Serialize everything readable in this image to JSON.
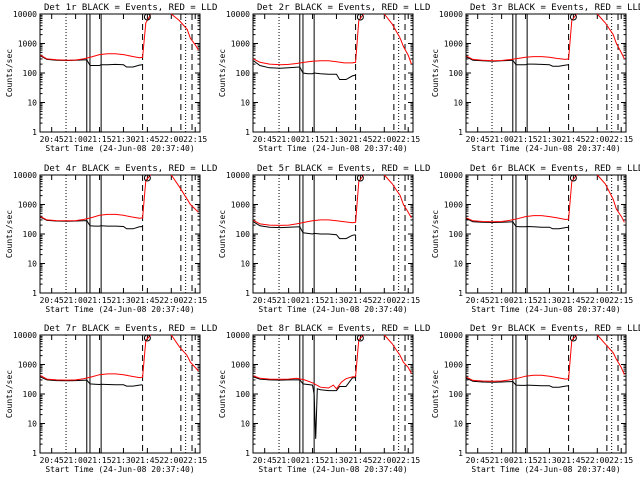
{
  "chart_data": {
    "type": "line",
    "y_scale": "log",
    "ylim": [
      1,
      10000
    ],
    "ylabel": "Counts/sec",
    "xlabel": "Start Time (24-Jun-08 20:37:40)",
    "x_tick_labels": [
      "20:45",
      "21:00",
      "21:15",
      "21:30",
      "21:45",
      "22:00",
      "22:15"
    ],
    "y_tick_labels": [
      "1",
      "10",
      "100",
      "1000",
      "10000"
    ],
    "x_tick_times": [
      "20:45",
      "21:00",
      "21:15",
      "21:30",
      "21:45",
      "22:00",
      "22:15"
    ],
    "xlim": [
      "20:37:40",
      "22:18"
    ],
    "series_colors": {
      "Events": "#000000",
      "LLD": "#ff0000"
    },
    "markers": {
      "dotted": [
        "20:54",
        "22:09"
      ],
      "solid": [
        "21:07",
        "21:09",
        "21:16"
      ],
      "dashed": [
        "21:42",
        "22:06",
        "22:13"
      ]
    },
    "panels": [
      {
        "title": "Det 1r BLACK = Events, RED = LLD",
        "events": {
          "x": [
            "20:38",
            "20:42",
            "20:48",
            "20:55",
            "21:00",
            "21:07",
            "21:09",
            "21:12",
            "21:15",
            "21:16",
            "21:20",
            "21:25",
            "21:30",
            "21:32",
            "21:36",
            "21:40",
            "21:42"
          ],
          "y": [
            380,
            290,
            270,
            265,
            270,
            280,
            180,
            180,
            180,
            190,
            190,
            195,
            190,
            160,
            160,
            185,
            190
          ]
        },
        "lld": {
          "x": [
            "20:38",
            "20:42",
            "20:48",
            "20:55",
            "21:00",
            "21:05",
            "21:10",
            "21:15",
            "21:20",
            "21:25",
            "21:30",
            "21:35",
            "21:40",
            "21:42",
            "21:44",
            "21:47",
            "21:52",
            "21:55",
            "22:00",
            "22:05",
            "22:10",
            "22:12",
            "22:15",
            "22:17"
          ],
          "y": [
            400,
            300,
            280,
            270,
            275,
            300,
            350,
            420,
            450,
            450,
            420,
            370,
            330,
            340,
            5000,
            9500,
            null,
            null,
            10000,
            6000,
            3000,
            1500,
            900,
            600
          ]
        }
      },
      {
        "title": "Det 2r BLACK = Events, RED = LLD",
        "events": {
          "x": [
            "20:38",
            "20:42",
            "20:48",
            "20:55",
            "21:00",
            "21:07",
            "21:09",
            "21:12",
            "21:15",
            "21:16",
            "21:20",
            "21:25",
            "21:30",
            "21:32",
            "21:36",
            "21:40",
            "21:42"
          ],
          "y": [
            260,
            180,
            150,
            145,
            150,
            160,
            100,
            95,
            95,
            100,
            95,
            90,
            90,
            60,
            60,
            80,
            85
          ]
        },
        "lld": {
          "x": [
            "20:38",
            "20:42",
            "20:48",
            "20:55",
            "21:00",
            "21:05",
            "21:10",
            "21:15",
            "21:20",
            "21:25",
            "21:30",
            "21:35",
            "21:40",
            "21:42",
            "21:44",
            "21:47",
            "21:52",
            "21:55",
            "22:00",
            "22:05",
            "22:10",
            "22:12",
            "22:15",
            "22:17"
          ],
          "y": [
            300,
            230,
            200,
            190,
            195,
            210,
            230,
            250,
            260,
            260,
            240,
            220,
            220,
            230,
            6000,
            10000,
            null,
            null,
            10000,
            4500,
            1500,
            800,
            400,
            200
          ]
        }
      },
      {
        "title": "Det 3r BLACK = Events, RED = LLD",
        "events": {
          "x": [
            "20:38",
            "20:42",
            "20:48",
            "20:55",
            "21:00",
            "21:07",
            "21:09",
            "21:12",
            "21:15",
            "21:16",
            "21:20",
            "21:25",
            "21:30",
            "21:32",
            "21:36",
            "21:40",
            "21:42"
          ],
          "y": [
            350,
            270,
            260,
            250,
            260,
            270,
            190,
            190,
            190,
            200,
            200,
            195,
            190,
            170,
            170,
            185,
            190
          ]
        },
        "lld": {
          "x": [
            "20:38",
            "20:42",
            "20:48",
            "20:55",
            "21:00",
            "21:05",
            "21:10",
            "21:15",
            "21:20",
            "21:25",
            "21:30",
            "21:35",
            "21:40",
            "21:42",
            "21:44",
            "21:47",
            "21:52",
            "21:55",
            "22:00",
            "22:05",
            "22:10",
            "22:12",
            "22:15",
            "22:17"
          ],
          "y": [
            370,
            290,
            270,
            260,
            265,
            285,
            310,
            340,
            360,
            360,
            340,
            310,
            290,
            300,
            6000,
            10000,
            null,
            null,
            10000,
            5000,
            2000,
            1000,
            500,
            300
          ]
        }
      },
      {
        "title": "Det 4r BLACK = Events, RED = LLD",
        "events": {
          "x": [
            "20:38",
            "20:42",
            "20:48",
            "20:55",
            "21:00",
            "21:07",
            "21:09",
            "21:12",
            "21:15",
            "21:16",
            "21:20",
            "21:25",
            "21:30",
            "21:32",
            "21:36",
            "21:40",
            "21:42"
          ],
          "y": [
            370,
            290,
            275,
            270,
            275,
            285,
            190,
            185,
            185,
            190,
            185,
            185,
            180,
            150,
            150,
            175,
            180
          ]
        },
        "lld": {
          "x": [
            "20:38",
            "20:42",
            "20:48",
            "20:55",
            "21:00",
            "21:05",
            "21:10",
            "21:15",
            "21:20",
            "21:25",
            "21:30",
            "21:35",
            "21:40",
            "21:42",
            "21:44",
            "21:47",
            "21:52",
            "21:55",
            "22:00",
            "22:05",
            "22:10",
            "22:12",
            "22:15",
            "22:17"
          ],
          "y": [
            390,
            300,
            285,
            280,
            285,
            310,
            360,
            430,
            460,
            460,
            430,
            380,
            340,
            350,
            6500,
            10000,
            null,
            null,
            10000,
            4000,
            1500,
            1000,
            700,
            550
          ]
        }
      },
      {
        "title": "Det 5r BLACK = Events, RED = LLD",
        "events": {
          "x": [
            "20:38",
            "20:42",
            "20:48",
            "20:55",
            "21:00",
            "21:07",
            "21:09",
            "21:12",
            "21:15",
            "21:16",
            "21:20",
            "21:25",
            "21:30",
            "21:32",
            "21:36",
            "21:40",
            "21:42"
          ],
          "y": [
            260,
            190,
            170,
            165,
            170,
            175,
            110,
            105,
            100,
            105,
            100,
            100,
            95,
            70,
            70,
            90,
            95
          ]
        },
        "lld": {
          "x": [
            "20:38",
            "20:42",
            "20:48",
            "20:55",
            "21:00",
            "21:05",
            "21:10",
            "21:15",
            "21:20",
            "21:25",
            "21:30",
            "21:35",
            "21:40",
            "21:42",
            "21:44",
            "21:47",
            "21:52",
            "21:55",
            "22:00",
            "22:05",
            "22:10",
            "22:12",
            "22:15",
            "22:17"
          ],
          "y": [
            290,
            220,
            200,
            195,
            200,
            220,
            250,
            280,
            300,
            300,
            280,
            260,
            240,
            250,
            6000,
            10000,
            null,
            null,
            10000,
            5000,
            2000,
            1000,
            550,
            350
          ]
        }
      },
      {
        "title": "Det 6r BLACK = Events, RED = LLD",
        "events": {
          "x": [
            "20:38",
            "20:42",
            "20:48",
            "20:55",
            "21:00",
            "21:07",
            "21:09",
            "21:12",
            "21:15",
            "21:16",
            "21:20",
            "21:25",
            "21:30",
            "21:32",
            "21:36",
            "21:40",
            "21:42"
          ],
          "y": [
            330,
            260,
            250,
            245,
            250,
            260,
            180,
            175,
            175,
            180,
            175,
            170,
            170,
            150,
            150,
            165,
            170
          ]
        },
        "lld": {
          "x": [
            "20:38",
            "20:42",
            "20:48",
            "20:55",
            "21:00",
            "21:05",
            "21:10",
            "21:15",
            "21:20",
            "21:25",
            "21:30",
            "21:35",
            "21:40",
            "21:42",
            "21:44",
            "21:47",
            "21:52",
            "21:55",
            "22:00",
            "22:05",
            "22:10",
            "22:12",
            "22:15",
            "22:17"
          ],
          "y": [
            350,
            280,
            265,
            260,
            265,
            290,
            330,
            390,
            420,
            420,
            390,
            350,
            310,
            320,
            6000,
            10000,
            null,
            null,
            10000,
            5000,
            1500,
            700,
            400,
            250
          ]
        }
      },
      {
        "title": "Det 7r BLACK = Events, RED = LLD",
        "events": {
          "x": [
            "20:38",
            "20:42",
            "20:48",
            "20:55",
            "21:00",
            "21:07",
            "21:09",
            "21:12",
            "21:15",
            "21:16",
            "21:20",
            "21:25",
            "21:30",
            "21:32",
            "21:36",
            "21:40",
            "21:42"
          ],
          "y": [
            380,
            300,
            285,
            280,
            285,
            295,
            220,
            215,
            210,
            215,
            210,
            205,
            205,
            185,
            185,
            200,
            205
          ]
        },
        "lld": {
          "x": [
            "20:38",
            "20:42",
            "20:48",
            "20:55",
            "21:00",
            "21:05",
            "21:10",
            "21:15",
            "21:20",
            "21:25",
            "21:30",
            "21:35",
            "21:40",
            "21:42",
            "21:44",
            "21:47",
            "21:52",
            "21:55",
            "22:00",
            "22:05",
            "22:10",
            "22:12",
            "22:15",
            "22:17"
          ],
          "y": [
            420,
            320,
            300,
            295,
            300,
            330,
            380,
            450,
            480,
            480,
            450,
            400,
            360,
            370,
            6500,
            10000,
            null,
            null,
            10000,
            4000,
            2000,
            1200,
            800,
            600
          ]
        }
      },
      {
        "title": "Det 8r BLACK = Events, RED = LLD",
        "events": {
          "x": [
            "20:38",
            "20:42",
            "20:48",
            "20:55",
            "21:00",
            "21:07",
            "21:09",
            "21:12",
            "21:15",
            "21:16",
            "21:17",
            "21:18",
            "21:20",
            "21:25",
            "21:30",
            "21:32",
            "21:36",
            "21:40",
            "21:42"
          ],
          "y": [
            380,
            320,
            300,
            295,
            300,
            305,
            220,
            210,
            200,
            100,
            3,
            150,
            140,
            130,
            130,
            180,
            180,
            350,
            360
          ]
        },
        "lld": {
          "x": [
            "20:38",
            "20:42",
            "20:48",
            "20:55",
            "21:00",
            "21:05",
            "21:10",
            "21:15",
            "21:20",
            "21:25",
            "21:28",
            "21:30",
            "21:33",
            "21:36",
            "21:40",
            "21:42",
            "21:44",
            "21:47",
            "21:52",
            "21:55",
            "22:00",
            "22:05",
            "22:10",
            "22:12",
            "22:15",
            "22:17"
          ],
          "y": [
            410,
            340,
            320,
            315,
            320,
            340,
            300,
            240,
            170,
            160,
            200,
            150,
            250,
            330,
            380,
            390,
            7000,
            10000,
            null,
            null,
            10000,
            5000,
            2000,
            1200,
            800,
            500
          ]
        }
      },
      {
        "title": "Det 9r BLACK = Events, RED = LLD",
        "events": {
          "x": [
            "20:38",
            "20:42",
            "20:48",
            "20:55",
            "21:00",
            "21:07",
            "21:09",
            "21:12",
            "21:15",
            "21:16",
            "21:20",
            "21:25",
            "21:30",
            "21:32",
            "21:36",
            "21:40",
            "21:42"
          ],
          "y": [
            340,
            270,
            255,
            250,
            255,
            265,
            200,
            195,
            195,
            200,
            195,
            190,
            190,
            170,
            170,
            185,
            190
          ]
        },
        "lld": {
          "x": [
            "20:38",
            "20:42",
            "20:48",
            "20:55",
            "21:00",
            "21:05",
            "21:10",
            "21:15",
            "21:20",
            "21:25",
            "21:30",
            "21:35",
            "21:40",
            "21:42",
            "21:44",
            "21:47",
            "21:52",
            "21:55",
            "22:00",
            "22:05",
            "22:10",
            "22:12",
            "22:15",
            "22:17"
          ],
          "y": [
            370,
            290,
            275,
            270,
            275,
            300,
            340,
            400,
            430,
            430,
            400,
            360,
            320,
            330,
            6500,
            10000,
            null,
            null,
            10000,
            5000,
            2500,
            1500,
            800,
            450
          ]
        }
      }
    ]
  }
}
